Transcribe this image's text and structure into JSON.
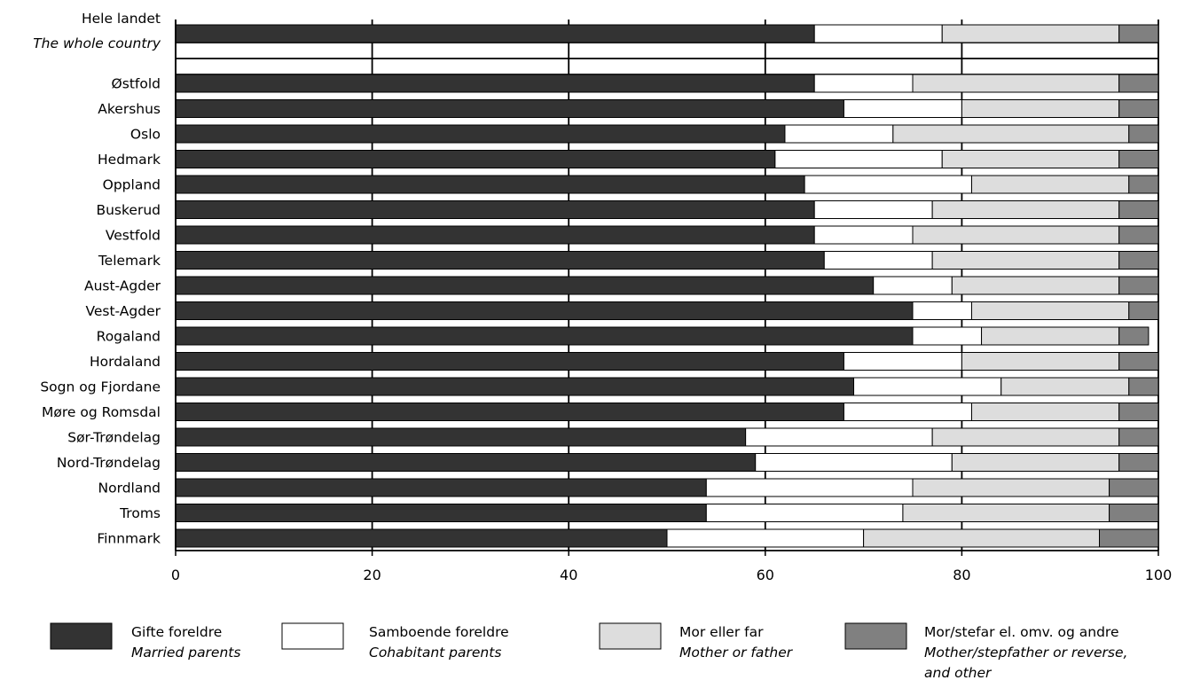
{
  "chart_data": {
    "type": "bar",
    "orientation": "horizontal",
    "stacked": true,
    "title": "",
    "xlabel": "",
    "ylabel": "",
    "xlim": [
      0,
      100
    ],
    "xticks": [
      "0",
      "20",
      "40",
      "60",
      "80",
      "100"
    ],
    "grid": true,
    "legend_position": "bottom",
    "whole_country": {
      "label": "Hele landet",
      "label_en": "The whole country",
      "values": [
        65,
        13,
        18,
        4
      ]
    },
    "categories": [
      "Østfold",
      "Akershus",
      "Oslo",
      "Hedmark",
      "Oppland",
      "Buskerud",
      "Vestfold",
      "Telemark",
      "Aust-Agder",
      "Vest-Agder",
      "Rogaland",
      "Hordaland",
      "Sogn og Fjordane",
      "Møre og Romsdal",
      "Sør-Trøndelag",
      "Nord-Trøndelag",
      "Nordland",
      "Troms",
      "Finnmark"
    ],
    "series": [
      {
        "name": "Gifte foreldre",
        "name_en": "Married parents",
        "color": "#333333",
        "values": [
          65,
          68,
          62,
          61,
          64,
          65,
          65,
          66,
          71,
          75,
          75,
          68,
          69,
          68,
          58,
          59,
          54,
          54,
          50
        ]
      },
      {
        "name": "Samboende foreldre",
        "name_en": "Cohabitant parents",
        "color": "#ffffff",
        "values": [
          10,
          12,
          11,
          17,
          17,
          12,
          10,
          11,
          8,
          6,
          7,
          12,
          15,
          13,
          19,
          20,
          21,
          20,
          20
        ]
      },
      {
        "name": "Mor eller far",
        "name_en": "Mother or father",
        "color": "#dddddd",
        "values": [
          21,
          16,
          24,
          18,
          16,
          19,
          21,
          19,
          17,
          16,
          14,
          16,
          13,
          15,
          19,
          17,
          20,
          21,
          24
        ]
      },
      {
        "name": "Mor/stefar el. omv. og andre",
        "name_en": "Mother/stepfather or reverse, and other",
        "color": "#808080",
        "values": [
          4,
          4,
          3,
          4,
          3,
          4,
          4,
          4,
          4,
          3,
          3,
          4,
          3,
          4,
          4,
          4,
          5,
          5,
          6
        ]
      }
    ]
  }
}
